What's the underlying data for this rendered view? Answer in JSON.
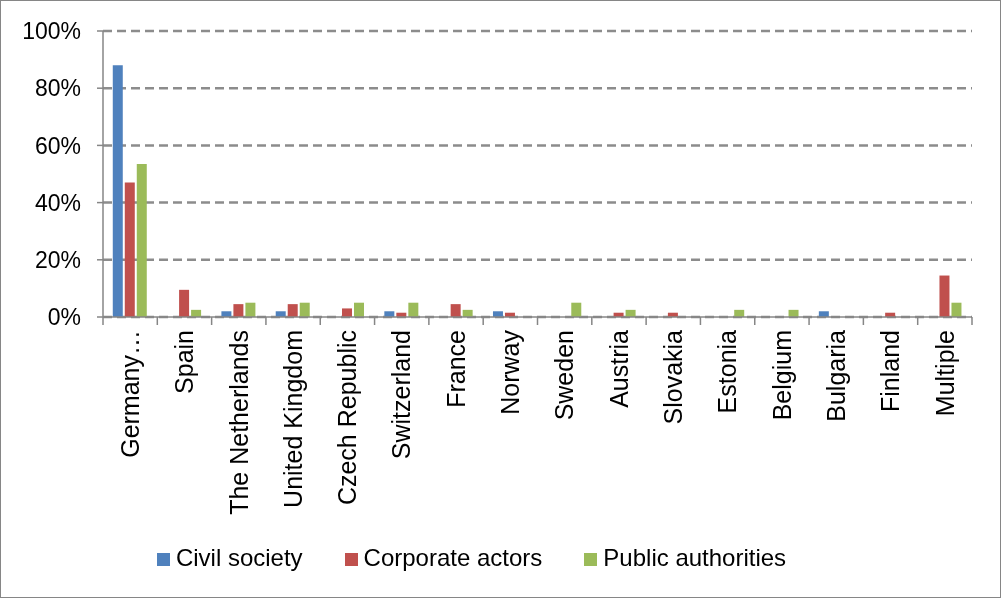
{
  "chart_data": {
    "type": "bar",
    "categories": [
      "Germany…",
      "Spain",
      "The Netherlands",
      "United Kingdom",
      "Czech Republic",
      "Switzerland",
      "France",
      "Norway",
      "Sweden",
      "Austria",
      "Slovakia",
      "Estonia",
      "Belgium",
      "Bulgaria",
      "Finland",
      "Multiple"
    ],
    "series": [
      {
        "name": "Civil society",
        "color": "#4f81bd",
        "values": [
          88,
          0,
          2,
          2,
          0,
          2,
          0,
          2,
          0,
          0,
          0,
          0,
          0,
          2,
          0,
          0
        ]
      },
      {
        "name": "Corporate actors",
        "color": "#c0504d",
        "values": [
          47,
          9.5,
          4.5,
          4.5,
          3,
          1.5,
          4.5,
          1.5,
          0,
          1.5,
          1.5,
          0,
          0,
          0,
          1.5,
          14.5
        ]
      },
      {
        "name": "Public authorities",
        "color": "#9bbb59",
        "values": [
          53.5,
          2.5,
          5,
          5,
          5,
          5,
          2.5,
          0,
          5,
          2.5,
          0,
          2.5,
          2.5,
          0,
          0,
          5
        ]
      }
    ],
    "ylim": [
      0,
      100
    ],
    "yticks": [
      {
        "value": 0,
        "label": "0%"
      },
      {
        "value": 20,
        "label": "20%"
      },
      {
        "value": 40,
        "label": "40%"
      },
      {
        "value": 60,
        "label": "60%"
      },
      {
        "value": 80,
        "label": "80%"
      },
      {
        "value": 100,
        "label": "100%"
      }
    ],
    "grid": "y",
    "legend": "bottom"
  }
}
